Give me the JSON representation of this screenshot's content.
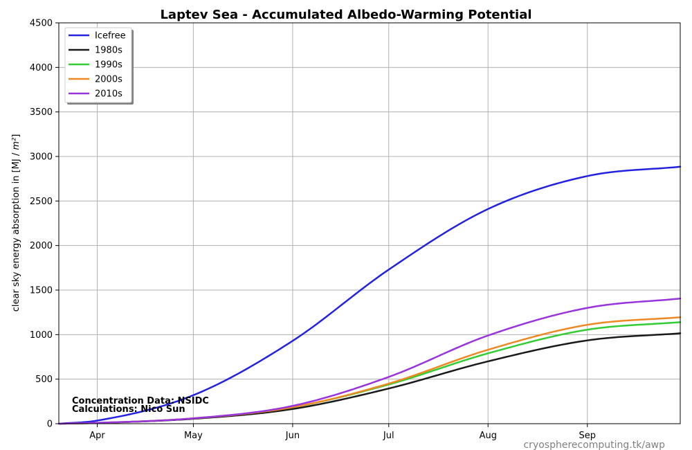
{
  "chart_data": {
    "type": "line",
    "title": "Laptev Sea - Accumulated Albedo-Warming Potential",
    "xlabel": "",
    "ylabel": "clear sky energy absorption in  [MJ / m²]",
    "ylim": [
      0,
      4500
    ],
    "yticks": [
      0,
      500,
      1000,
      1500,
      2000,
      2500,
      3000,
      3500,
      4000,
      4500
    ],
    "x_unit": "date",
    "xlim": [
      "03-20",
      "09-30"
    ],
    "xticks": [
      {
        "date": "04-01",
        "label": "Apr"
      },
      {
        "date": "05-01",
        "label": "May"
      },
      {
        "date": "06-01",
        "label": "Jun"
      },
      {
        "date": "07-01",
        "label": "Jul"
      },
      {
        "date": "08-01",
        "label": "Aug"
      },
      {
        "date": "09-01",
        "label": "Sep"
      }
    ],
    "grid": true,
    "legend_position": "top-left",
    "x": [
      "03-20",
      "04-01",
      "05-01",
      "06-01",
      "07-01",
      "08-01",
      "09-01",
      "09-30"
    ],
    "series": [
      {
        "name": "Icefree",
        "color": "#2222e0",
        "values": [
          0,
          35,
          320,
          930,
          1730,
          2410,
          2780,
          2885
        ]
      },
      {
        "name": "1980s",
        "color": "#1a1a1a",
        "values": [
          0,
          8,
          55,
          165,
          395,
          700,
          935,
          1015
        ]
      },
      {
        "name": "1990s",
        "color": "#33cc33",
        "values": [
          0,
          9,
          60,
          185,
          440,
          790,
          1055,
          1140
        ]
      },
      {
        "name": "2000s",
        "color": "#ee8822",
        "values": [
          0,
          9,
          60,
          185,
          450,
          830,
          1110,
          1195
        ]
      },
      {
        "name": "2010s",
        "color": "#9933dd",
        "values": [
          0,
          10,
          60,
          200,
          525,
          990,
          1300,
          1405
        ]
      }
    ],
    "annotations": [
      "Concentration Data: NSIDC",
      "Calculations: Nico Sun"
    ],
    "source": "cryospherecomputing.tk/awp"
  }
}
